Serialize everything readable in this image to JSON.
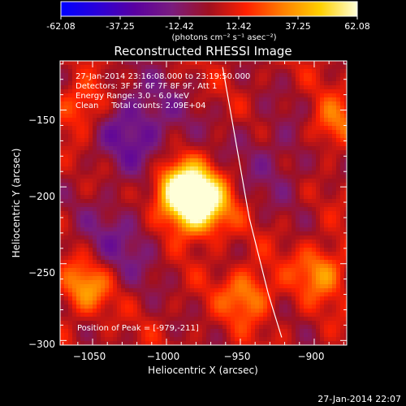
{
  "colorbar": {
    "ticks": [
      "-62.08",
      "-37.25",
      "-12.42",
      "12.42",
      "37.25",
      "62.08"
    ],
    "range": [
      -62.08,
      62.08
    ],
    "unit_label": "(photons cm⁻² s⁻¹ asec⁻²)",
    "colors": [
      "#0000ff",
      "#2b00d8",
      "#5a00a0",
      "#7a1c7e",
      "#a01020",
      "#ff2000",
      "#ff8000",
      "#ffd000",
      "#ffffd8"
    ]
  },
  "chart_data": {
    "type": "heatmap",
    "title": "Reconstructed RHESSI Image",
    "xlabel": "Heliocentric X (arcsec)",
    "ylabel": "Heliocentric Y (arcsec)",
    "xlim": [
      -1072,
      -878
    ],
    "ylim": [
      -303,
      -118
    ],
    "xticks": [
      -1050,
      -1000,
      -950,
      -900
    ],
    "yticks": [
      -150,
      -200,
      -250,
      -300
    ],
    "xtick_labels": [
      "−1050",
      "−1000",
      "−950",
      "−900"
    ],
    "ytick_labels": [
      "−150",
      "−200",
      "−250",
      "−300"
    ],
    "peak_position": [
      -979,
      -211
    ],
    "sources": [
      {
        "kind": "peak",
        "x": -980,
        "y": -210,
        "amplitude": 80
      },
      {
        "kind": "source",
        "x": -993,
        "y": -200,
        "amplitude": 40
      },
      {
        "kind": "source",
        "x": -1055,
        "y": -147,
        "amplitude": 28
      },
      {
        "kind": "source",
        "x": -1055,
        "y": -265,
        "amplitude": 35
      },
      {
        "kind": "source",
        "x": -945,
        "y": -270,
        "amplitude": 30
      },
      {
        "kind": "source",
        "x": -888,
        "y": -160,
        "amplitude": 26
      },
      {
        "kind": "source",
        "x": -895,
        "y": -255,
        "amplitude": 30
      },
      {
        "kind": "negative",
        "x": -1020,
        "y": -160,
        "amplitude": -28
      },
      {
        "kind": "negative",
        "x": -1030,
        "y": -235,
        "amplitude": -18
      },
      {
        "kind": "negative",
        "x": -925,
        "y": -180,
        "amplitude": -15
      }
    ],
    "limb_curve": {
      "x": [
        -962,
        -955,
        -944,
        -931,
        -922
      ],
      "y": [
        -122,
        -160,
        -220,
        -270,
        -298
      ]
    },
    "annotations": [
      "27-Jan-2014 23:16:08.000 to 23:19:50.000",
      "Detectors: 3F 5F 6F 7F 8F 9F, Att 1",
      "Energy Range: 3.0 - 6.0 keV",
      "Clean     Total counts: 2.09E+04"
    ],
    "peak_label": "Position of Peak = [-979,-211]"
  },
  "footer": {
    "timestamp": "27-Jan-2014 22:07"
  }
}
